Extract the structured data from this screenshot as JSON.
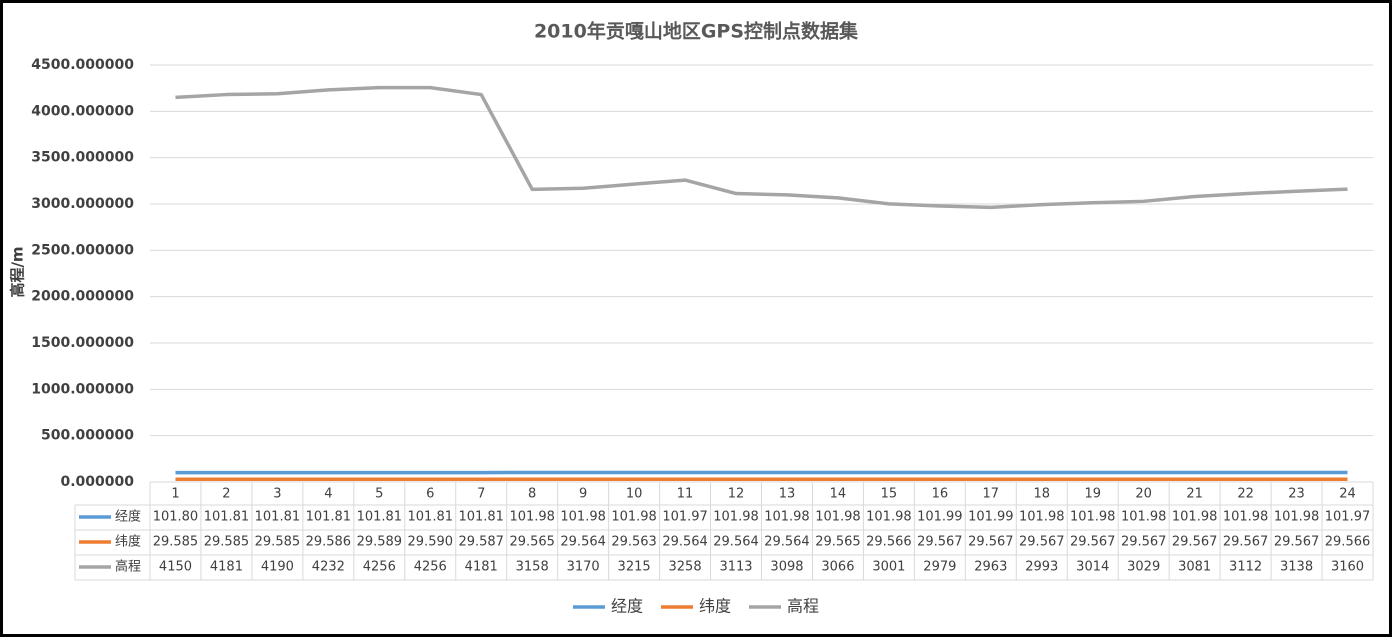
{
  "chart_data": {
    "type": "line",
    "title": "2010年贡嘎山地区GPS控制点数据集",
    "y_label": "高程/m",
    "categories": [
      "1",
      "2",
      "3",
      "4",
      "5",
      "6",
      "7",
      "8",
      "9",
      "10",
      "11",
      "12",
      "13",
      "14",
      "15",
      "16",
      "17",
      "18",
      "19",
      "20",
      "21",
      "22",
      "23",
      "24"
    ],
    "series": [
      {
        "name": "经度",
        "color": "#5b9bd5",
        "values": [
          101.8,
          101.81,
          101.81,
          101.81,
          101.81,
          101.81,
          101.81,
          101.98,
          101.98,
          101.98,
          101.97,
          101.98,
          101.98,
          101.98,
          101.98,
          101.99,
          101.99,
          101.98,
          101.98,
          101.98,
          101.98,
          101.98,
          101.98,
          101.97
        ],
        "value_labels": [
          "101.80",
          "101.81",
          "101.81",
          "101.81",
          "101.81",
          "101.81",
          "101.81",
          "101.98",
          "101.98",
          "101.98",
          "101.97",
          "101.98",
          "101.98",
          "101.98",
          "101.98",
          "101.99",
          "101.99",
          "101.98",
          "101.98",
          "101.98",
          "101.98",
          "101.98",
          "101.98",
          "101.97"
        ]
      },
      {
        "name": "纬度",
        "color": "#ed7d31",
        "values": [
          29.585,
          29.585,
          29.585,
          29.586,
          29.589,
          29.59,
          29.587,
          29.565,
          29.564,
          29.563,
          29.564,
          29.564,
          29.564,
          29.565,
          29.566,
          29.567,
          29.567,
          29.567,
          29.567,
          29.567,
          29.567,
          29.567,
          29.567,
          29.566
        ],
        "value_labels": [
          "29.585",
          "29.585",
          "29.585",
          "29.586",
          "29.589",
          "29.590",
          "29.587",
          "29.565",
          "29.564",
          "29.563",
          "29.564",
          "29.564",
          "29.564",
          "29.565",
          "29.566",
          "29.567",
          "29.567",
          "29.567",
          "29.567",
          "29.567",
          "29.567",
          "29.567",
          "29.567",
          "29.566"
        ]
      },
      {
        "name": "高程",
        "color": "#a5a5a5",
        "values": [
          4150,
          4181,
          4190,
          4232,
          4256,
          4256,
          4181,
          3158,
          3170,
          3215,
          3258,
          3113,
          3098,
          3066,
          3001,
          2979,
          2963,
          2993,
          3014,
          3029,
          3081,
          3112,
          3138,
          3160
        ]
      }
    ],
    "ylim": [
      0,
      4500
    ],
    "yticks": [
      {
        "value": 0,
        "label": "0.000000"
      },
      {
        "value": 500,
        "label": "500.000000"
      },
      {
        "value": 1000,
        "label": "1000.000000"
      },
      {
        "value": 1500,
        "label": "1500.000000"
      },
      {
        "value": 2000,
        "label": "2000.000000"
      },
      {
        "value": 2500,
        "label": "2500.000000"
      },
      {
        "value": 3000,
        "label": "3000.000000"
      },
      {
        "value": 3500,
        "label": "3500.000000"
      },
      {
        "value": 4000,
        "label": "4000.000000"
      },
      {
        "value": 4500,
        "label": "4500.000000"
      }
    ],
    "grid": true,
    "legend": "bottom"
  }
}
